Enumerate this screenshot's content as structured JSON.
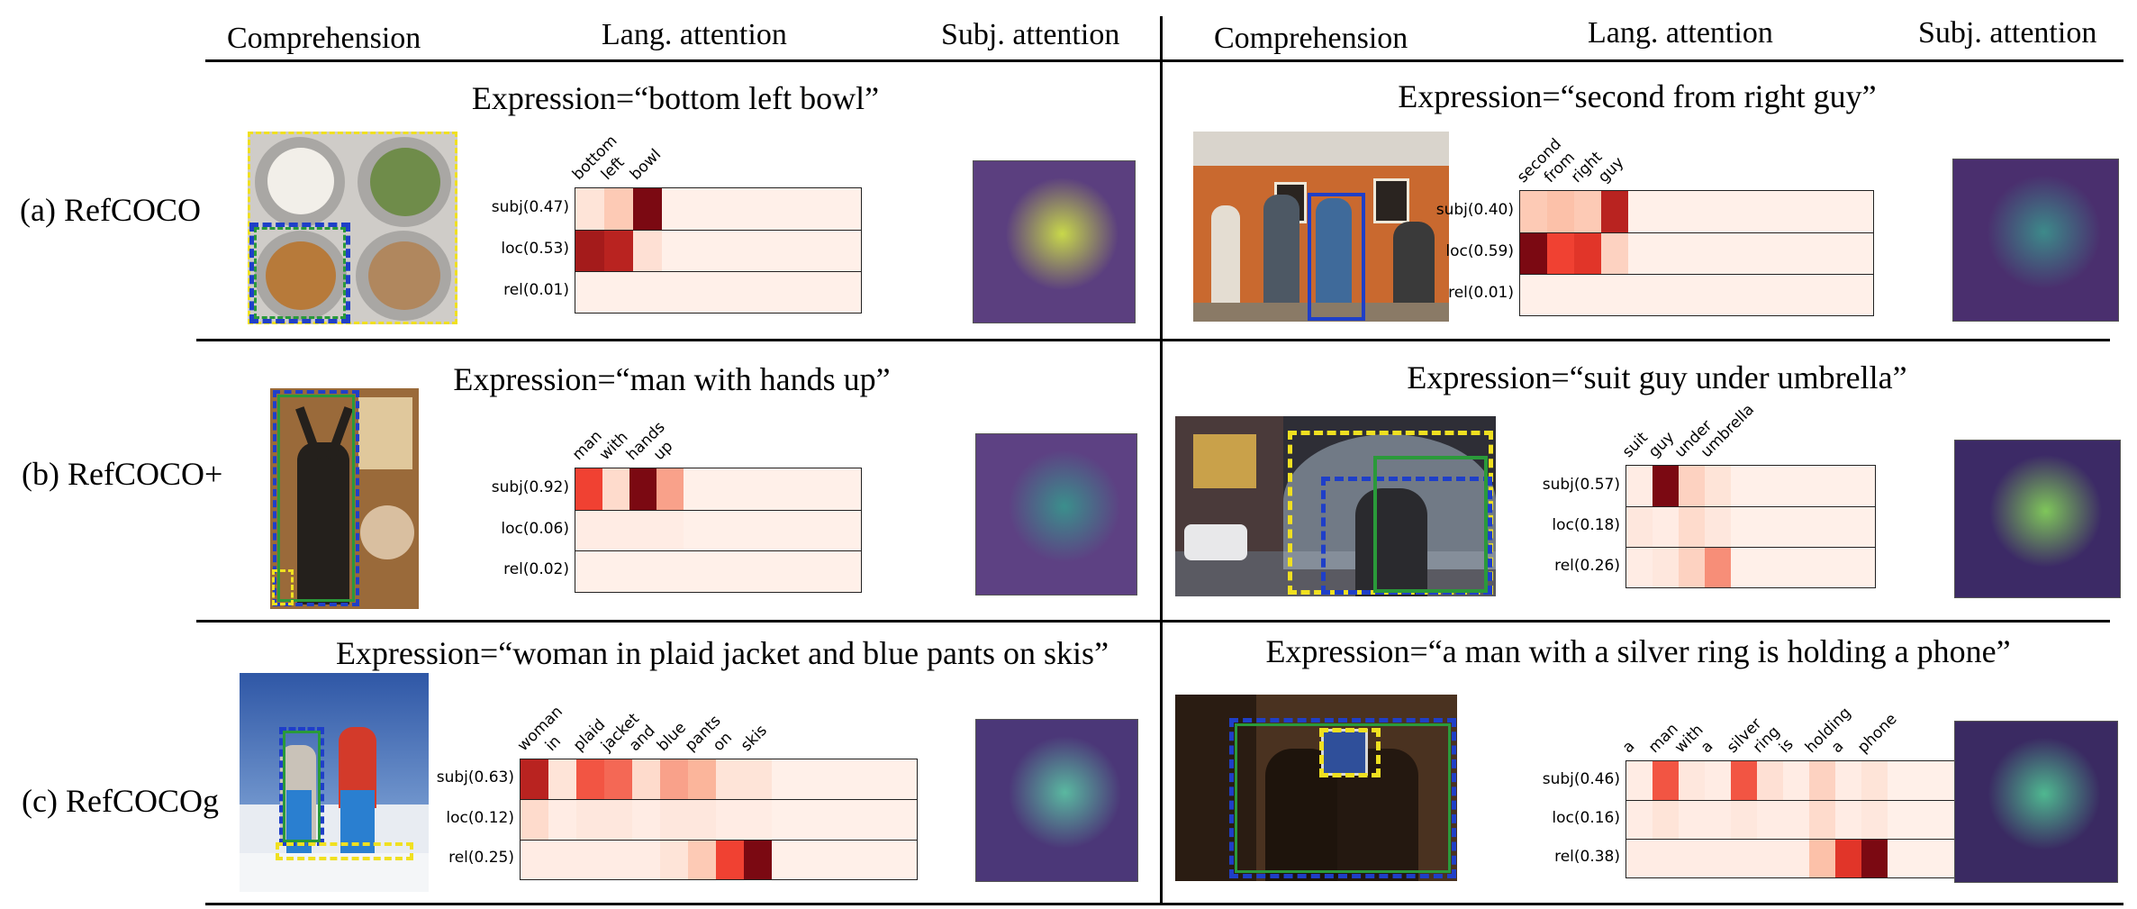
{
  "headers": {
    "left": [
      "Comprehension",
      "Lang. attention",
      "Subj. attention"
    ],
    "right": [
      "Comprehension",
      "Lang. attention",
      "Subj. attention"
    ]
  },
  "datasets": [
    "(a) RefCOCO",
    "(b) RefCOCO+",
    "(c) RefCOCOg"
  ],
  "panels": [
    {
      "expression": "Expression=“bottom left bowl”",
      "words": [
        "bottom",
        "left",
        "bowl"
      ],
      "rows": [
        {
          "label": "subj(0.47)",
          "values": [
            0.1,
            0.25,
            0.95
          ]
        },
        {
          "label": "loc(0.53)",
          "values": [
            0.85,
            0.8,
            0.12
          ]
        },
        {
          "label": "rel(0.01)",
          "values": [
            0.03,
            0.03,
            0.03
          ]
        }
      ],
      "photo_colors": [
        "#d8d6d2",
        "#b9864b",
        "#7e8e54"
      ],
      "subj_colors": [
        "#5b3f7f",
        "#c8d84a"
      ]
    },
    {
      "expression": "Expression=“second from right guy”",
      "words": [
        "second",
        "from",
        "right",
        "guy"
      ],
      "rows": [
        {
          "label": "subj(0.40)",
          "values": [
            0.25,
            0.3,
            0.25,
            0.8
          ]
        },
        {
          "label": "loc(0.59)",
          "values": [
            0.95,
            0.65,
            0.7,
            0.2
          ]
        },
        {
          "label": "rel(0.01)",
          "values": [
            0.03,
            0.03,
            0.03,
            0.03
          ]
        }
      ],
      "photo_colors": [
        "#c9692f",
        "#5a4a3e",
        "#a8a29a"
      ],
      "subj_colors": [
        "#4a2f6e",
        "#3d8a8a"
      ]
    },
    {
      "expression": "Expression=“man with hands up”",
      "words": [
        "man",
        "with",
        "hands",
        "up"
      ],
      "rows": [
        {
          "label": "subj(0.92)",
          "values": [
            0.65,
            0.15,
            0.95,
            0.4
          ]
        },
        {
          "label": "loc(0.06)",
          "values": [
            0.05,
            0.05,
            0.05,
            0.05
          ]
        },
        {
          "label": "rel(0.02)",
          "values": [
            0.03,
            0.03,
            0.03,
            0.03
          ]
        }
      ],
      "photo_colors": [
        "#9a6a3a",
        "#2a2420",
        "#d6b690"
      ],
      "subj_colors": [
        "#5d4183",
        "#3b8f8c"
      ]
    },
    {
      "expression": "Expression=“suit guy under umbrella”",
      "words": [
        "suit",
        "guy",
        "under",
        "umbrella"
      ],
      "rows": [
        {
          "label": "subj(0.57)",
          "values": [
            0.05,
            0.95,
            0.2,
            0.1
          ]
        },
        {
          "label": "loc(0.18)",
          "values": [
            0.08,
            0.05,
            0.15,
            0.08
          ]
        },
        {
          "label": "rel(0.26)",
          "values": [
            0.05,
            0.08,
            0.2,
            0.45
          ]
        }
      ],
      "photo_colors": [
        "#3a3a42",
        "#8a9aa6",
        "#c9a14a"
      ],
      "subj_colors": [
        "#3c2a66",
        "#7fc65a"
      ]
    },
    {
      "expression": "Expression=“woman in plaid jacket and blue pants on skis”",
      "words": [
        "woman",
        "in",
        "plaid",
        "jacket",
        "and",
        "blue",
        "pants",
        "on",
        "skis"
      ],
      "rows": [
        {
          "label": "subj(0.63)",
          "values": [
            0.8,
            0.1,
            0.6,
            0.55,
            0.15,
            0.4,
            0.35,
            0.1,
            0.1
          ]
        },
        {
          "label": "loc(0.12)",
          "values": [
            0.15,
            0.05,
            0.08,
            0.08,
            0.05,
            0.08,
            0.08,
            0.05,
            0.05
          ]
        },
        {
          "label": "rel(0.25)",
          "values": [
            0.05,
            0.05,
            0.05,
            0.05,
            0.05,
            0.1,
            0.25,
            0.65,
            0.95
          ]
        }
      ],
      "photo_colors": [
        "#3b68b4",
        "#e4e8ee",
        "#d33a2a"
      ],
      "subj_colors": [
        "#4b3778",
        "#5ab8a0"
      ]
    },
    {
      "expression": "Expression=“a man with a silver ring is holding a phone”",
      "words": [
        "a",
        "man",
        "with",
        "a",
        "silver",
        "ring",
        "is",
        "holding",
        "a",
        "phone"
      ],
      "rows": [
        {
          "label": "subj(0.46)",
          "values": [
            0.05,
            0.6,
            0.08,
            0.05,
            0.6,
            0.12,
            0.05,
            0.2,
            0.05,
            0.1
          ]
        },
        {
          "label": "loc(0.16)",
          "values": [
            0.05,
            0.1,
            0.05,
            0.05,
            0.08,
            0.05,
            0.05,
            0.15,
            0.05,
            0.08
          ]
        },
        {
          "label": "rel(0.38)",
          "values": [
            0.05,
            0.05,
            0.05,
            0.05,
            0.05,
            0.05,
            0.05,
            0.3,
            0.7,
            0.95
          ]
        }
      ],
      "photo_colors": [
        "#5a3a22",
        "#2a1a10",
        "#2f4f9a"
      ],
      "subj_colors": [
        "#3a2a62",
        "#4fb890"
      ]
    }
  ]
}
